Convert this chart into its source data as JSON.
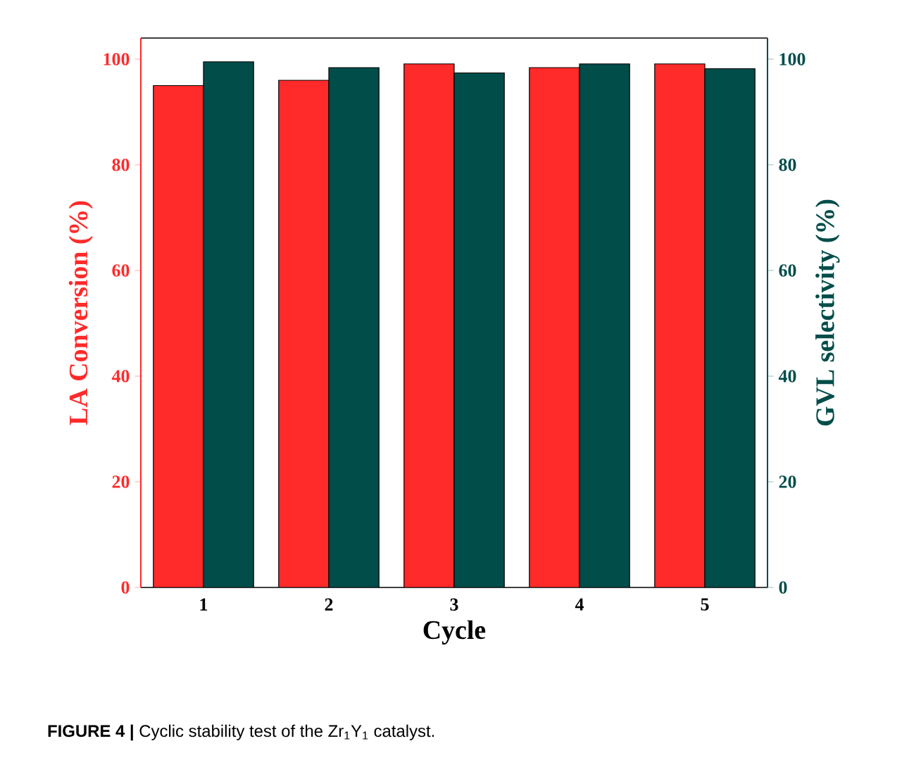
{
  "chart_data": {
    "type": "bar",
    "xlabel": "Cycle",
    "ylabel": "LA Conversion (%)",
    "y2label": "GVL selectivity (%)",
    "categories": [
      "1",
      "2",
      "3",
      "4",
      "5"
    ],
    "series": [
      {
        "color": "#ff2a2a",
        "values": [
          95.0,
          96.0,
          99.1,
          98.4,
          99.1
        ]
      },
      {
        "color": "#004d4a",
        "axis": "y2",
        "values": [
          99.5,
          98.4,
          97.4,
          99.1,
          98.2
        ]
      }
    ],
    "ylim": [
      0,
      104
    ],
    "yticks": [
      0,
      20,
      40,
      60,
      80,
      100
    ],
    "y2lim": [
      0,
      104
    ],
    "y2ticks": [
      0,
      20,
      40,
      60,
      80,
      100
    ],
    "grid": false,
    "annotations": [
      "**FIGURE 4 |** Cyclic stability test of the Zr$_{1}$Y$_{1}$ catalyst."
    ]
  }
}
